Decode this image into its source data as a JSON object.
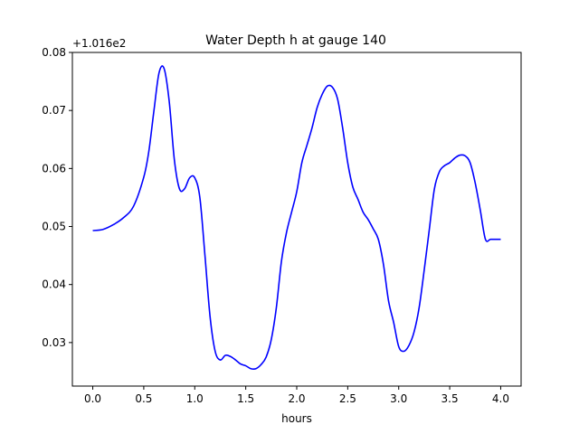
{
  "chart_data": {
    "type": "line",
    "title": "Water Depth h at gauge 140",
    "xlabel": "hours",
    "ylabel": "",
    "offset_label": "+1.016e2",
    "xlim": [
      -0.2,
      4.2
    ],
    "ylim": [
      0.0225,
      0.08
    ],
    "xticks": [
      0.0,
      0.5,
      1.0,
      1.5,
      2.0,
      2.5,
      3.0,
      3.5,
      4.0
    ],
    "xtick_labels": [
      "0.0",
      "0.5",
      "1.0",
      "1.5",
      "2.0",
      "2.5",
      "3.0",
      "3.5",
      "4.0"
    ],
    "yticks": [
      0.03,
      0.04,
      0.05,
      0.06,
      0.07,
      0.08
    ],
    "ytick_labels": [
      "0.03",
      "0.04",
      "0.05",
      "0.06",
      "0.07",
      "0.08"
    ],
    "grid": false,
    "line_color": "#0000ff",
    "series": [
      {
        "x": [
          0.0,
          0.1,
          0.2,
          0.3,
          0.4,
          0.5,
          0.55,
          0.6,
          0.65,
          0.7,
          0.75,
          0.8,
          0.85,
          0.9,
          0.95,
          1.0,
          1.05,
          1.1,
          1.15,
          1.2,
          1.25,
          1.3,
          1.35,
          1.4,
          1.45,
          1.5,
          1.55,
          1.6,
          1.65,
          1.7,
          1.75,
          1.8,
          1.85,
          1.9,
          1.95,
          2.0,
          2.05,
          2.1,
          2.15,
          2.2,
          2.25,
          2.3,
          2.35,
          2.4,
          2.45,
          2.5,
          2.55,
          2.6,
          2.65,
          2.7,
          2.75,
          2.8,
          2.85,
          2.9,
          2.95,
          3.0,
          3.05,
          3.1,
          3.15,
          3.2,
          3.25,
          3.3,
          3.35,
          3.4,
          3.45,
          3.5,
          3.55,
          3.6,
          3.65,
          3.7,
          3.75,
          3.8,
          3.85,
          3.9,
          3.95,
          4.0
        ],
        "y": [
          0.0493,
          0.0495,
          0.0503,
          0.0515,
          0.0535,
          0.0585,
          0.063,
          0.07,
          0.0765,
          0.0772,
          0.0715,
          0.0615,
          0.0565,
          0.0565,
          0.0584,
          0.0584,
          0.055,
          0.045,
          0.0345,
          0.0285,
          0.027,
          0.0278,
          0.0276,
          0.027,
          0.0263,
          0.026,
          0.0255,
          0.0255,
          0.0262,
          0.0275,
          0.0305,
          0.036,
          0.044,
          0.049,
          0.0525,
          0.056,
          0.061,
          0.064,
          0.067,
          0.0705,
          0.0728,
          0.0742,
          0.074,
          0.072,
          0.067,
          0.061,
          0.0568,
          0.0547,
          0.0525,
          0.0512,
          0.0496,
          0.0478,
          0.0435,
          0.0372,
          0.0335,
          0.0293,
          0.0285,
          0.0295,
          0.0318,
          0.036,
          0.0425,
          0.0495,
          0.0565,
          0.0595,
          0.0605,
          0.061,
          0.0618,
          0.0623,
          0.0622,
          0.061,
          0.0575,
          0.0528,
          0.0478,
          0.0478,
          0.0478,
          0.0478
        ]
      }
    ]
  }
}
